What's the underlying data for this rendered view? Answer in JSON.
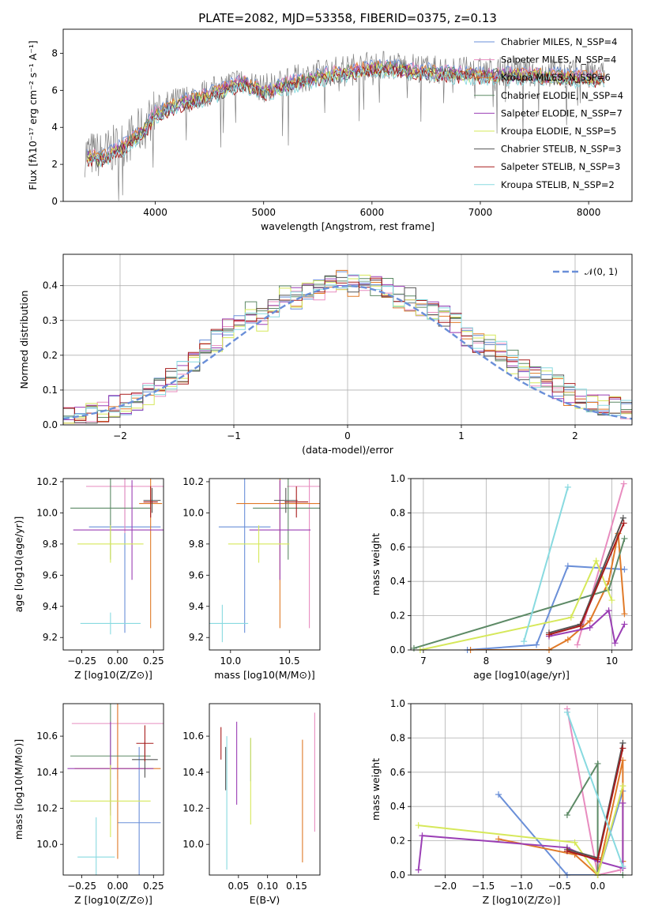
{
  "chart_data": [
    {
      "type": "line",
      "title": "PLATE=2082, MJD=53358, FIBERID=0375, z=0.13",
      "xlabel": "wavelength [Angstrom, rest frame]",
      "ylabel": "Flux [fλ10⁻¹⁷ erg cm⁻² s⁻¹ A⁻¹]",
      "xlim": [
        3150,
        8400
      ],
      "ylim": [
        0,
        9.3
      ],
      "xticks": [
        4000,
        5000,
        6000,
        7000,
        8000
      ],
      "yticks": [
        0,
        2,
        4,
        6,
        8
      ],
      "legend_position": "upper right",
      "observed_spectrum_color": "#808080",
      "model_spectra": [
        {
          "name": "Chabrier MILES, N_SSP=4",
          "color": "#6a8fd8"
        },
        {
          "name": "Salpeter MILES, N_SSP=4",
          "color": "#e88cbf"
        },
        {
          "name": "Kroupa MILES, N_SSP=6",
          "color": "#e07a28"
        },
        {
          "name": "Chabrier ELODIE, N_SSP=4",
          "color": "#5d8a66"
        },
        {
          "name": "Salpeter ELODIE, N_SSP=7",
          "color": "#9b3fb5"
        },
        {
          "name": "Kroupa ELODIE, N_SSP=5",
          "color": "#d6e85a"
        },
        {
          "name": "Chabrier STELIB, N_SSP=3",
          "color": "#555555"
        },
        {
          "name": "Salpeter STELIB, N_SSP=3",
          "color": "#a81c1c"
        },
        {
          "name": "Kroupa STELIB, N_SSP=2",
          "color": "#88dae0"
        }
      ],
      "continuum_trend": {
        "x": [
          3350,
          3500,
          3700,
          3900,
          4000,
          4200,
          4500,
          4800,
          5000,
          5300,
          5600,
          6000,
          6300,
          6600,
          7000,
          7400,
          7800,
          8100
        ],
        "y": [
          2.6,
          2.5,
          3.1,
          4.0,
          4.9,
          5.4,
          5.9,
          6.6,
          6.1,
          6.6,
          7.0,
          7.4,
          7.3,
          7.1,
          7.0,
          7.0,
          6.9,
          6.8
        ]
      }
    },
    {
      "type": "line",
      "xlabel": "(data-model)/error",
      "ylabel": "Normed distribution",
      "xlim": [
        -2.5,
        2.5
      ],
      "ylim": [
        0,
        0.49
      ],
      "xticks": [
        -2,
        -1,
        0,
        1,
        2
      ],
      "yticks": [
        0.0,
        0.1,
        0.2,
        0.3,
        0.4
      ],
      "grid": true,
      "legend": [
        {
          "name": "N(0,1)",
          "color": "#6a8fd8",
          "style": "dashed"
        }
      ],
      "legend_position": "upper right",
      "histogram_bins": [
        -2.5,
        -2.4,
        -2.3,
        -2.2,
        -2.1,
        -2.0,
        -1.9,
        -1.8,
        -1.7,
        -1.6,
        -1.5,
        -1.4,
        -1.3,
        -1.2,
        -1.1,
        -1.0,
        -0.9,
        -0.8,
        -0.7,
        -0.6,
        -0.5,
        -0.4,
        -0.3,
        -0.2,
        -0.1,
        0.0,
        0.1,
        0.2,
        0.3,
        0.4,
        0.5,
        0.6,
        0.7,
        0.8,
        0.9,
        1.0,
        1.1,
        1.2,
        1.3,
        1.4,
        1.5,
        1.6,
        1.7,
        1.8,
        1.9,
        2.0,
        2.1,
        2.2,
        2.3,
        2.4,
        2.5
      ],
      "histogram_envelope": [
        0.02,
        0.02,
        0.03,
        0.04,
        0.05,
        0.06,
        0.07,
        0.09,
        0.11,
        0.13,
        0.15,
        0.18,
        0.22,
        0.24,
        0.27,
        0.3,
        0.32,
        0.3,
        0.34,
        0.37,
        0.36,
        0.38,
        0.39,
        0.41,
        0.42,
        0.4,
        0.41,
        0.4,
        0.39,
        0.37,
        0.36,
        0.34,
        0.33,
        0.31,
        0.3,
        0.26,
        0.24,
        0.23,
        0.21,
        0.18,
        0.16,
        0.14,
        0.13,
        0.11,
        0.09,
        0.08,
        0.07,
        0.06,
        0.05,
        0.04
      ],
      "histogram_series_colors": [
        "#6a8fd8",
        "#e88cbf",
        "#e07a28",
        "#5d8a66",
        "#9b3fb5",
        "#d6e85a",
        "#555555",
        "#a81c1c",
        "#88dae0"
      ]
    },
    {
      "type": "scatter",
      "xlabel": "Z [log10(Z/Z⊙)]",
      "ylabel": "age [log10(age/yr)]",
      "xlim": [
        -0.38,
        0.32
      ],
      "ylim": [
        9.12,
        10.22
      ],
      "xticks": [
        -0.25,
        0.0,
        0.25
      ],
      "xticklabels": [
        "−0.25",
        "0.00",
        "0.25"
      ],
      "yticks": [
        9.2,
        9.4,
        9.6,
        9.8,
        10.0,
        10.2
      ],
      "points": [
        {
          "color": "#6a8fd8",
          "x": 0.05,
          "xerr": 0.25,
          "y": 9.91,
          "yerr": 0.68
        },
        {
          "color": "#e88cbf",
          "x": 0.05,
          "xerr": 0.27,
          "y": 10.17,
          "yerr": 0.3
        },
        {
          "color": "#e07a28",
          "x": 0.23,
          "xerr": 0.08,
          "y": 10.06,
          "yerr": 0.8
        },
        {
          "color": "#5d8a66",
          "x": -0.05,
          "xerr": 0.28,
          "y": 10.03,
          "yerr": 0.33
        },
        {
          "color": "#9b3fb5",
          "x": 0.1,
          "xerr": 0.41,
          "y": 9.89,
          "yerr": 0.32
        },
        {
          "color": "#d6e85a",
          "x": -0.05,
          "xerr": 0.23,
          "y": 9.8,
          "yerr": 0.12
        },
        {
          "color": "#555555",
          "x": 0.24,
          "xerr": 0.06,
          "y": 10.08,
          "yerr": 0.08
        },
        {
          "color": "#a81c1c",
          "x": 0.23,
          "xerr": 0.05,
          "y": 10.07,
          "yerr": 0.1
        },
        {
          "color": "#88dae0",
          "x": -0.05,
          "xerr": 0.21,
          "y": 9.29,
          "yerr": 0.07
        }
      ]
    },
    {
      "type": "scatter",
      "xlabel": "mass [log10(M/M⊙)]",
      "ylabel": "",
      "xlim": [
        9.82,
        10.76
      ],
      "ylim": [
        9.12,
        10.22
      ],
      "xticks": [
        10.0,
        10.5
      ],
      "xticklabels": [
        "10.0",
        "10.5"
      ],
      "yticks": [
        9.2,
        9.4,
        9.6,
        9.8,
        10.0,
        10.2
      ],
      "points": [
        {
          "color": "#6a8fd8",
          "x": 10.12,
          "xerr": 0.22,
          "y": 9.91,
          "yerr": 0.68
        },
        {
          "color": "#e88cbf",
          "x": 10.67,
          "xerr": 0.19,
          "y": 10.17,
          "yerr": 0.91
        },
        {
          "color": "#e07a28",
          "x": 10.42,
          "xerr": 0.37,
          "y": 10.06,
          "yerr": 0.8
        },
        {
          "color": "#5d8a66",
          "x": 10.49,
          "xerr": 0.3,
          "y": 10.03,
          "yerr": 0.33
        },
        {
          "color": "#9b3fb5",
          "x": 10.42,
          "xerr": 0.26,
          "y": 9.89,
          "yerr": 0.32
        },
        {
          "color": "#d6e85a",
          "x": 10.24,
          "xerr": 0.26,
          "y": 9.8,
          "yerr": 0.12
        },
        {
          "color": "#555555",
          "x": 10.47,
          "xerr": 0.1,
          "y": 10.08,
          "yerr": 0.08
        },
        {
          "color": "#a81c1c",
          "x": 10.56,
          "xerr": 0.1,
          "y": 10.07,
          "yerr": 0.1
        },
        {
          "color": "#88dae0",
          "x": 9.93,
          "xerr": 0.22,
          "y": 9.29,
          "yerr": 0.12
        }
      ]
    },
    {
      "type": "line",
      "xlabel": "age [log10(age/yr)]",
      "ylabel": "mass weight",
      "xlim": [
        6.8,
        10.32
      ],
      "ylim": [
        0,
        1.0
      ],
      "xticks": [
        7,
        8,
        9,
        10
      ],
      "yticks": [
        0.0,
        0.2,
        0.4,
        0.6,
        0.8,
        1.0
      ],
      "grid": true,
      "series": [
        {
          "color": "#6a8fd8",
          "x": [
            7.7,
            8.8,
            9.3,
            10.2
          ],
          "y": [
            0.0,
            0.03,
            0.49,
            0.47
          ]
        },
        {
          "color": "#e88cbf",
          "x": [
            9.45,
            10.19
          ],
          "y": [
            0.03,
            0.97
          ]
        },
        {
          "color": "#e07a28",
          "x": [
            7.75,
            9.0,
            9.3,
            9.65,
            9.95,
            10.1,
            10.2
          ],
          "y": [
            0.0,
            0.0,
            0.06,
            0.17,
            0.4,
            0.68,
            0.21
          ]
        },
        {
          "color": "#5d8a66",
          "x": [
            6.85,
            9.95,
            10.2
          ],
          "y": [
            0.01,
            0.35,
            0.65
          ]
        },
        {
          "color": "#9b3fb5",
          "x": [
            9.0,
            9.65,
            9.95,
            10.05,
            10.2
          ],
          "y": [
            0.08,
            0.13,
            0.23,
            0.04,
            0.15
          ]
        },
        {
          "color": "#d6e85a",
          "x": [
            6.95,
            9.35,
            9.75,
            10.0
          ],
          "y": [
            0.0,
            0.19,
            0.52,
            0.29
          ]
        },
        {
          "color": "#555555",
          "x": [
            9.0,
            9.5,
            10.18
          ],
          "y": [
            0.1,
            0.15,
            0.77
          ]
        },
        {
          "color": "#a81c1c",
          "x": [
            9.0,
            9.5,
            10.19
          ],
          "y": [
            0.09,
            0.14,
            0.74
          ]
        },
        {
          "color": "#88dae0",
          "x": [
            8.6,
            9.3
          ],
          "y": [
            0.05,
            0.95
          ]
        }
      ]
    },
    {
      "type": "scatter",
      "xlabel": "Z [log10(Z/Z⊙)]",
      "ylabel": "mass [log10(M/M⊙)]",
      "xlim": [
        -0.38,
        0.32
      ],
      "ylim": [
        9.83,
        10.78
      ],
      "xticks": [
        -0.25,
        0.0,
        0.25
      ],
      "xticklabels": [
        "−0.25",
        "0.00",
        "0.25"
      ],
      "yticks": [
        10.0,
        10.2,
        10.4,
        10.6
      ],
      "points": [
        {
          "color": "#6a8fd8",
          "x": 0.15,
          "xerr": 0.15,
          "y": 10.12,
          "yerr": 0.42
        },
        {
          "color": "#e88cbf",
          "x": 0.0,
          "xerr": 0.32,
          "y": 10.67,
          "yerr": 0.31
        },
        {
          "color": "#e07a28",
          "x": 0.0,
          "xerr": 0.3,
          "y": 10.42,
          "yerr": 0.5
        },
        {
          "color": "#5d8a66",
          "x": -0.05,
          "xerr": 0.28,
          "y": 10.49,
          "yerr": 0.3
        },
        {
          "color": "#9b3fb5",
          "x": -0.05,
          "xerr": 0.3,
          "y": 10.42,
          "yerr": 0.26
        },
        {
          "color": "#d6e85a",
          "x": -0.05,
          "xerr": 0.28,
          "y": 10.24,
          "yerr": 0.2
        },
        {
          "color": "#555555",
          "x": 0.19,
          "xerr": 0.09,
          "y": 10.47,
          "yerr": 0.1
        },
        {
          "color": "#a81c1c",
          "x": 0.19,
          "xerr": 0.06,
          "y": 10.56,
          "yerr": 0.1
        },
        {
          "color": "#88dae0",
          "x": -0.15,
          "xerr": 0.13,
          "y": 9.93,
          "yerr": 0.22
        }
      ]
    },
    {
      "type": "scatter",
      "xlabel": "E(B-V)",
      "ylabel": "",
      "xlim": [
        0.0,
        0.19
      ],
      "ylim": [
        9.83,
        10.78
      ],
      "xticks": [
        0.05,
        0.1,
        0.15
      ],
      "xticklabels": [
        "0.05",
        "0.10",
        "0.15"
      ],
      "yticks": [
        10.0,
        10.2,
        10.4,
        10.6
      ],
      "points": [
        {
          "color": "#a81c1c",
          "x": 0.02,
          "y": 10.56,
          "yerr": 0.09
        },
        {
          "color": "#555555",
          "x": 0.028,
          "y": 10.42,
          "yerr": 0.12
        },
        {
          "color": "#88dae0",
          "x": 0.03,
          "y": 10.23,
          "yerr": 0.37
        },
        {
          "color": "#9b3fb5",
          "x": 0.047,
          "y": 10.45,
          "yerr": 0.23
        },
        {
          "color": "#6a8fd8",
          "x": 0.071,
          "y": 10.47,
          "yerr": 0.12
        },
        {
          "color": "#d6e85a",
          "x": 0.071,
          "y": 10.35,
          "yerr": 0.24
        },
        {
          "color": "#e07a28",
          "x": 0.16,
          "y": 10.24,
          "yerr": 0.34
        },
        {
          "color": "#e88cbf",
          "x": 0.181,
          "y": 10.4,
          "yerr": 0.33
        }
      ]
    },
    {
      "type": "line",
      "xlabel": "Z [log10(Z/Z⊙)]",
      "ylabel": "mass weight",
      "xlim": [
        -2.45,
        0.45
      ],
      "ylim": [
        0,
        1.0
      ],
      "xticks": [
        -2.0,
        -1.5,
        -1.0,
        -0.5,
        0.0
      ],
      "xticklabels": [
        "−2.0",
        "−1.5",
        "−1.0",
        "−0.5",
        "0.0"
      ],
      "yticks": [
        0.0,
        0.2,
        0.4,
        0.6,
        0.8,
        1.0
      ],
      "grid": true,
      "series": [
        {
          "color": "#6a8fd8",
          "x": [
            -1.3,
            -0.4,
            0.0,
            0.33
          ],
          "y": [
            0.47,
            0.0,
            0.0,
            0.49
          ]
        },
        {
          "color": "#e88cbf",
          "x": [
            -0.4,
            0.0,
            0.3
          ],
          "y": [
            0.97,
            0.0,
            0.03
          ]
        },
        {
          "color": "#e07a28",
          "x": [
            -1.3,
            -0.3,
            0.0,
            0.33,
            0.33
          ],
          "y": [
            0.21,
            0.12,
            0.0,
            0.67,
            0.08
          ]
        },
        {
          "color": "#5d8a66",
          "x": [
            -0.4,
            0.0,
            0.0,
            0.33
          ],
          "y": [
            0.35,
            0.65,
            0.0,
            0.0
          ]
        },
        {
          "color": "#9b3fb5",
          "x": [
            -2.35,
            -2.3,
            -0.4,
            0.0,
            0.33,
            0.33
          ],
          "y": [
            0.03,
            0.23,
            0.16,
            0.08,
            0.04,
            0.42
          ]
        },
        {
          "color": "#d6e85a",
          "x": [
            -2.35,
            -0.3,
            0.0,
            0.33
          ],
          "y": [
            0.29,
            0.19,
            0.0,
            0.52
          ]
        },
        {
          "color": "#555555",
          "x": [
            -0.4,
            0.0,
            0.33
          ],
          "y": [
            0.15,
            0.1,
            0.77
          ]
        },
        {
          "color": "#a81c1c",
          "x": [
            -0.4,
            0.0,
            0.33
          ],
          "y": [
            0.14,
            0.09,
            0.74
          ]
        },
        {
          "color": "#88dae0",
          "x": [
            -0.4,
            0.33
          ],
          "y": [
            0.95,
            0.05
          ]
        }
      ]
    }
  ]
}
